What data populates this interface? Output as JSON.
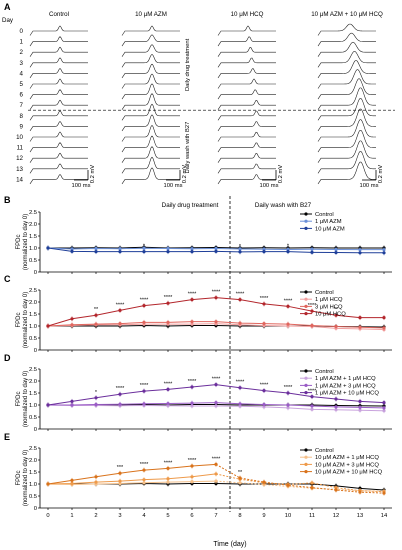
{
  "figure": {
    "panel_labels": [
      "A",
      "B",
      "C",
      "D",
      "E"
    ],
    "x_axis_label": "Time (day)",
    "y_axis_label_line1": "FPDc",
    "y_axis_label_line2": "(normalized to day 0)",
    "phase_labels": {
      "treatment": "Daily drug treatment",
      "wash": "Daily wash with B27"
    },
    "panel_a": {
      "day_label": "Day",
      "conditions": [
        "Control",
        "10 μM AZM",
        "10 μM HCQ",
        "10 μM AZM + 10 μM HCQ"
      ],
      "days": [
        "0",
        "1",
        "2",
        "3",
        "4",
        "5",
        "6",
        "7",
        "8",
        "9",
        "10",
        "11",
        "12",
        "13",
        "14"
      ],
      "vertical_treatment_label": "Daily drug treatment",
      "vertical_wash_label": "Daily wash with B27",
      "scale_voltage": "0.2 mV",
      "scale_time": "100 ms",
      "colors": {
        "trace": "#222222"
      }
    },
    "colors": {
      "control": "#000000",
      "azm_1": "#6a8fd8",
      "azm_10": "#1f3f99",
      "hcq_1": "#f2a0a0",
      "hcq_3": "#e0665e",
      "hcq_10": "#b3262c",
      "combo_1": "#c9a3dd",
      "combo_3": "#9a5cc6",
      "combo_10": "#6b2f9c",
      "hcq1_azm10": "#f5c08a",
      "hcq3_azm10": "#ee9a4a",
      "hcq10_azm10": "#d9731c"
    }
  },
  "chart_data": [
    {
      "panel": "B",
      "type": "line",
      "x": [
        0,
        1,
        2,
        3,
        4,
        5,
        6,
        7,
        8,
        9,
        10,
        11,
        12,
        13,
        14
      ],
      "ylim": [
        0,
        2.5
      ],
      "yticks": [
        "0",
        "0.5",
        "1.0",
        "1.5",
        "2.0",
        "2.5"
      ],
      "xlabel": "",
      "ylabel": "FPDc (normalized to day 0)",
      "legend": "top-right",
      "series": [
        {
          "name": "Control",
          "color_key": "control",
          "values": [
            1,
            1,
            1.01,
            1.0,
            1.03,
            1.0,
            1.01,
            1.02,
            1.0,
            1.01,
            1.0,
            1.01,
            1.0,
            1.0,
            1.0
          ]
        },
        {
          "name": "1 μM AZM",
          "color_key": "azm_1",
          "values": [
            1,
            0.96,
            0.98,
            0.97,
            0.99,
            0.98,
            0.97,
            0.98,
            0.96,
            0.95,
            0.94,
            0.95,
            0.94,
            0.93,
            0.93
          ]
        },
        {
          "name": "10 μM AZM",
          "color_key": "azm_10",
          "values": [
            1,
            0.86,
            0.85,
            0.85,
            0.85,
            0.85,
            0.85,
            0.86,
            0.84,
            0.85,
            0.85,
            0.82,
            0.81,
            0.8,
            0.8
          ]
        }
      ],
      "annotations": [
        {
          "x": 4,
          "text": "*"
        },
        {
          "x": 8,
          "text": "*"
        },
        {
          "x": 10,
          "text": "*"
        }
      ]
    },
    {
      "panel": "C",
      "type": "line",
      "x": [
        0,
        1,
        2,
        3,
        4,
        5,
        6,
        7,
        8,
        9,
        10,
        11,
        12,
        13,
        14
      ],
      "ylim": [
        0,
        2.5
      ],
      "yticks": [
        "0",
        "0.5",
        "1.0",
        "1.5",
        "2.0",
        "2.5"
      ],
      "xlabel": "",
      "ylabel": "FPDc (normalized to day 0)",
      "legend": "top-right",
      "series": [
        {
          "name": "Control",
          "color_key": "control",
          "values": [
            1,
            1.0,
            1.0,
            1.0,
            1.02,
            1.0,
            1.02,
            1.02,
            1.0,
            1.0,
            1.0,
            1.0,
            0.98,
            0.97,
            0.96
          ]
        },
        {
          "name": "1 μM HCQ",
          "color_key": "hcq_1",
          "values": [
            1,
            1.02,
            1.05,
            1.05,
            1.08,
            1.08,
            1.08,
            1.1,
            1.05,
            1.02,
            1.0,
            0.98,
            0.9,
            0.88,
            0.85
          ]
        },
        {
          "name": "3 μM HCQ",
          "color_key": "hcq_3",
          "values": [
            1,
            1.05,
            1.08,
            1.1,
            1.15,
            1.15,
            1.18,
            1.18,
            1.12,
            1.1,
            1.08,
            1.02,
            0.98,
            0.95,
            0.92
          ]
        },
        {
          "name": "10 μM HCQ",
          "color_key": "hcq_10",
          "values": [
            1,
            1.3,
            1.45,
            1.65,
            1.85,
            1.95,
            2.1,
            2.18,
            2.1,
            1.92,
            1.82,
            1.62,
            1.45,
            1.35,
            1.35
          ]
        }
      ],
      "annotations": [
        {
          "x": 2,
          "text": "**"
        },
        {
          "x": 3,
          "text": "****"
        },
        {
          "x": 4,
          "text": "****"
        },
        {
          "x": 5,
          "text": "****"
        },
        {
          "x": 6,
          "text": "****"
        },
        {
          "x": 7,
          "text": "****"
        },
        {
          "x": 8,
          "text": "****"
        },
        {
          "x": 9,
          "text": "****"
        },
        {
          "x": 10,
          "text": "****"
        },
        {
          "x": 11,
          "text": "****"
        },
        {
          "x": 12,
          "text": "**"
        }
      ]
    },
    {
      "panel": "D",
      "type": "line",
      "x": [
        0,
        1,
        2,
        3,
        4,
        5,
        6,
        7,
        8,
        9,
        10,
        11,
        12,
        13,
        14
      ],
      "ylim": [
        0,
        2.5
      ],
      "yticks": [
        "0",
        "0.5",
        "1.0",
        "1.5",
        "2.0",
        "2.5"
      ],
      "xlabel": "",
      "ylabel": "FPDc (normalized to day 0)",
      "legend": "top-right",
      "series": [
        {
          "name": "Control",
          "color_key": "control",
          "values": [
            1,
            1.0,
            1.0,
            1.0,
            1.02,
            1.0,
            1.02,
            1.02,
            1.0,
            1.0,
            1.0,
            1.0,
            0.98,
            0.97,
            0.96
          ]
        },
        {
          "name": "1 μM AZM + 1 μM HCQ",
          "color_key": "combo_1",
          "values": [
            1,
            0.98,
            0.98,
            0.97,
            0.98,
            0.97,
            0.96,
            0.96,
            0.95,
            0.92,
            0.88,
            0.82,
            0.8,
            0.78,
            0.76
          ]
        },
        {
          "name": "1 μM AZM + 3 μM HCQ",
          "color_key": "combo_3",
          "values": [
            1,
            1.0,
            1.02,
            1.03,
            1.05,
            1.06,
            1.08,
            1.1,
            1.05,
            1.02,
            1.0,
            0.96,
            0.92,
            0.9,
            0.88
          ]
        },
        {
          "name": "1 μM AZM + 10 μM HCQ",
          "color_key": "combo_10",
          "values": [
            1,
            1.15,
            1.3,
            1.45,
            1.58,
            1.65,
            1.75,
            1.85,
            1.72,
            1.6,
            1.5,
            1.35,
            1.25,
            1.15,
            1.1
          ]
        }
      ],
      "annotations": [
        {
          "x": 2,
          "text": "*"
        },
        {
          "x": 3,
          "text": "****"
        },
        {
          "x": 4,
          "text": "****"
        },
        {
          "x": 5,
          "text": "****"
        },
        {
          "x": 6,
          "text": "****"
        },
        {
          "x": 7,
          "text": "****"
        },
        {
          "x": 8,
          "text": "****"
        },
        {
          "x": 9,
          "text": "****"
        },
        {
          "x": 10,
          "text": "****"
        },
        {
          "x": 11,
          "text": "****"
        }
      ]
    },
    {
      "panel": "E",
      "type": "line",
      "x": [
        0,
        1,
        2,
        3,
        4,
        5,
        6,
        7,
        8,
        9,
        10,
        11,
        12,
        13,
        14
      ],
      "ylim": [
        0,
        2.5
      ],
      "yticks": [
        "0",
        "0.5",
        "1.0",
        "1.5",
        "2.0",
        "2.5"
      ],
      "xticks": [
        "0",
        "1",
        "2",
        "3",
        "4",
        "5",
        "6",
        "7",
        "8",
        "9",
        "10",
        "11",
        "12",
        "13",
        "14"
      ],
      "xlabel": "Time (day)",
      "ylabel": "FPDc (normalized to day 0)",
      "legend": "top-right",
      "series": [
        {
          "name": "Control",
          "color_key": "control",
          "values": [
            1,
            1.0,
            1.0,
            1.0,
            1.02,
            1.0,
            1.02,
            1.02,
            1.0,
            1.0,
            1.0,
            1.0,
            0.92,
            0.82,
            0.75
          ]
        },
        {
          "name": "10 μM AZM + 1 μM HCQ",
          "color_key": "hcq1_azm10",
          "values": [
            1,
            0.98,
            1.0,
            1.02,
            1.05,
            1.08,
            1.1,
            1.12,
            1.05,
            0.98,
            0.9,
            0.82,
            0.78,
            0.72,
            0.7
          ]
        },
        {
          "name": "10 μM AZM + 3 μM HCQ",
          "color_key": "hcq3_azm10",
          "values": [
            1,
            1.02,
            1.08,
            1.12,
            1.18,
            1.22,
            1.3,
            1.42,
            1.2,
            1.05,
            0.98,
            1.05,
            0.85,
            0.72,
            0.68
          ]
        },
        {
          "name": "10 μM AZM + 10 μM HCQ",
          "color_key": "hcq10_azm10",
          "values": [
            1,
            1.15,
            1.3,
            1.45,
            1.58,
            1.65,
            1.75,
            1.82,
            1.25,
            1.08,
            0.95,
            0.85,
            0.75,
            0.66,
            0.62
          ]
        }
      ],
      "annotations": [
        {
          "x": 3,
          "text": "***"
        },
        {
          "x": 4,
          "text": "****"
        },
        {
          "x": 5,
          "text": "****"
        },
        {
          "x": 6,
          "text": "****"
        },
        {
          "x": 7,
          "text": "****"
        },
        {
          "x": 8,
          "text": "**"
        }
      ]
    }
  ]
}
